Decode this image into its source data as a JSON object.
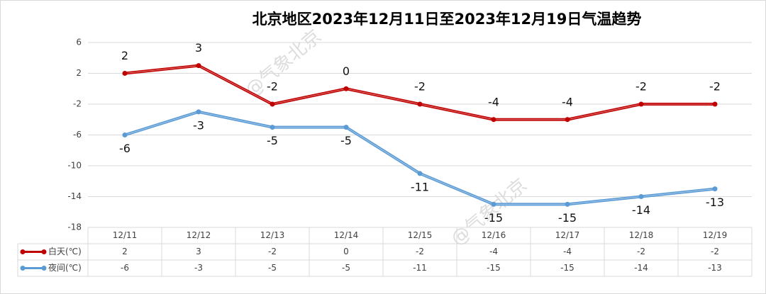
{
  "chart_data": {
    "type": "line",
    "title": "北京地区2023年12月11日至2023年12月19日气温趋势",
    "watermark": "@气象北京",
    "categories": [
      "12/11",
      "12/12",
      "12/13",
      "12/14",
      "12/15",
      "12/16",
      "12/17",
      "12/18",
      "12/19"
    ],
    "series": [
      {
        "name": "白天(℃)",
        "color": "#c00000",
        "values": [
          2,
          3,
          -2,
          0,
          -2,
          -4,
          -4,
          -2,
          -2
        ]
      },
      {
        "name": "夜间(℃)",
        "color": "#5b9bd5",
        "values": [
          -6,
          -3,
          -5,
          -5,
          -11,
          -15,
          -15,
          -14,
          -13
        ]
      }
    ],
    "ylim": [
      -18,
      6
    ],
    "yticks": [
      -18,
      -14,
      -10,
      -6,
      -2,
      2,
      6
    ],
    "grid": true,
    "data_table": true
  }
}
